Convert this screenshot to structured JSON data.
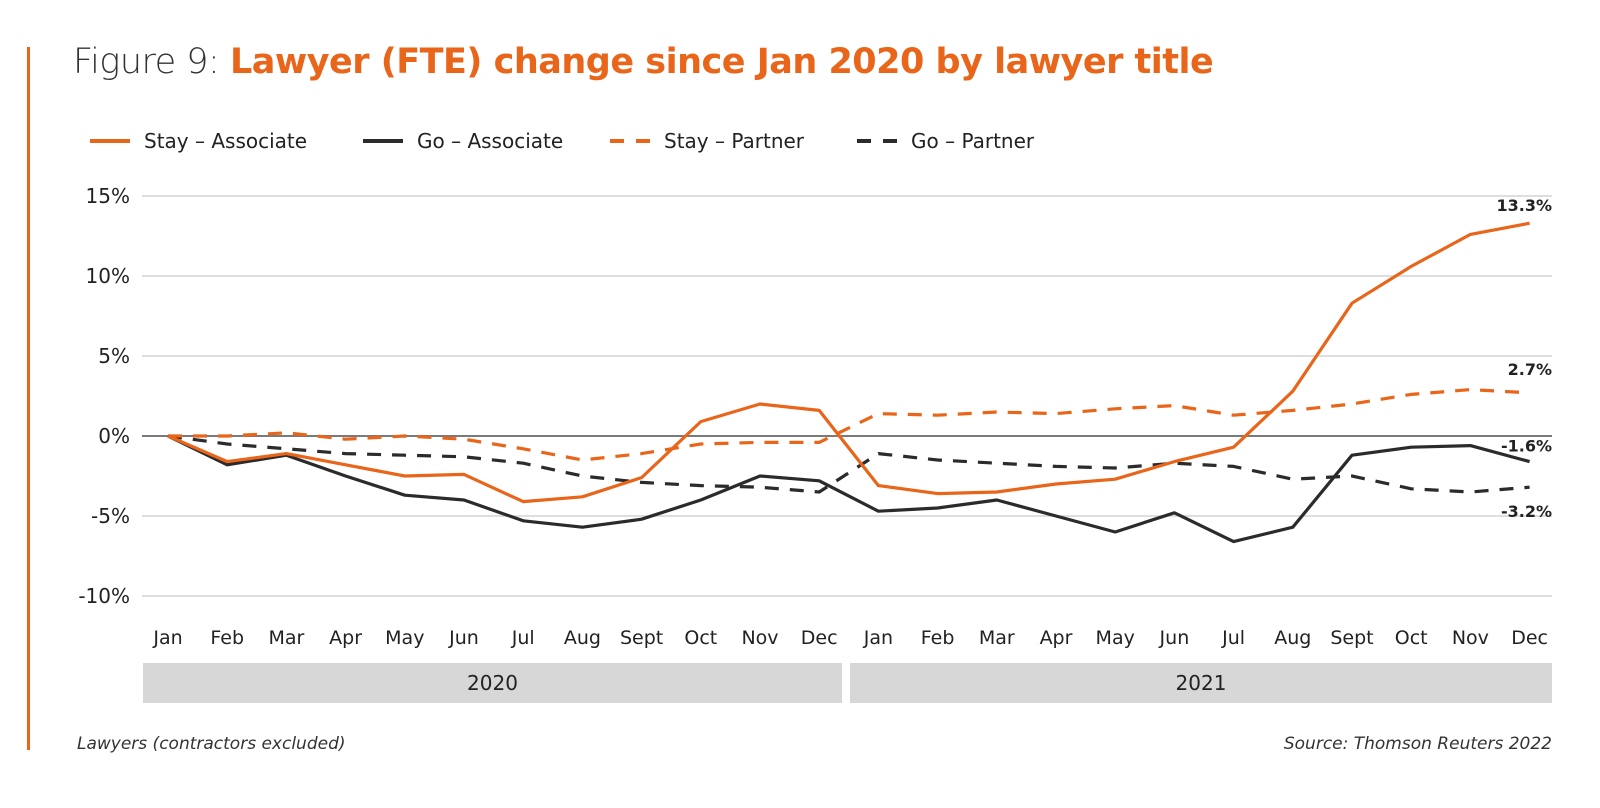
{
  "figure": {
    "prefix": "Figure 9:",
    "title": "Lawyer (FTE) change since Jan 2020 by lawyer title",
    "accent_color": "#e8651a",
    "dark_color": "#2b2b2b"
  },
  "footnote_left": "Lawyers (contractors excluded)",
  "footnote_right": "Source: Thomson Reuters 2022",
  "chart_data": {
    "type": "line",
    "title": "Lawyer (FTE) change since Jan 2020 by lawyer title",
    "xlabel": "",
    "ylabel": "",
    "ylim": [
      -10,
      15
    ],
    "yticks": [
      15,
      10,
      5,
      0,
      -5,
      -10
    ],
    "ytick_labels": [
      "15%",
      "10%",
      "5%",
      "0%",
      "-5%",
      "-10%"
    ],
    "grid": true,
    "legend_position": "top-left",
    "x": [
      "Jan",
      "Feb",
      "Mar",
      "Apr",
      "May",
      "Jun",
      "Jul",
      "Aug",
      "Sept",
      "Oct",
      "Nov",
      "Dec",
      "Jan",
      "Feb",
      "Mar",
      "Apr",
      "May",
      "Jun",
      "Jul",
      "Aug",
      "Sept",
      "Oct",
      "Nov",
      "Dec"
    ],
    "year_groups": [
      {
        "label": "2020",
        "start": 0,
        "end": 11
      },
      {
        "label": "2021",
        "start": 12,
        "end": 23
      }
    ],
    "series": [
      {
        "name": "Stay – Associate",
        "color": "#e8651a",
        "dashed": false,
        "end_label": "13.3%",
        "values": [
          0,
          -1.6,
          -1.1,
          -1.8,
          -2.5,
          -2.4,
          -4.1,
          -3.8,
          -2.6,
          0.9,
          2.0,
          1.6,
          -3.1,
          -3.6,
          -3.5,
          -3.0,
          -2.7,
          -1.6,
          -0.7,
          2.8,
          8.3,
          10.6,
          12.6,
          13.3
        ]
      },
      {
        "name": "Go – Associate",
        "color": "#2b2b2b",
        "dashed": false,
        "end_label": "-1.6%",
        "values": [
          0,
          -1.8,
          -1.2,
          -2.5,
          -3.7,
          -4.0,
          -5.3,
          -5.7,
          -5.2,
          -4.0,
          -2.5,
          -2.8,
          -4.7,
          -4.5,
          -4.0,
          -5.0,
          -6.0,
          -4.8,
          -6.6,
          -5.7,
          -1.2,
          -0.7,
          -0.6,
          -1.6
        ]
      },
      {
        "name": "Stay – Partner",
        "color": "#e8651a",
        "dashed": true,
        "end_label": "2.7%",
        "values": [
          0,
          0.0,
          0.2,
          -0.2,
          0.0,
          -0.2,
          -0.8,
          -1.5,
          -1.1,
          -0.5,
          -0.4,
          -0.4,
          1.4,
          1.3,
          1.5,
          1.4,
          1.7,
          1.9,
          1.3,
          1.6,
          2.0,
          2.6,
          2.9,
          2.7
        ]
      },
      {
        "name": "Go – Partner",
        "color": "#2b2b2b",
        "dashed": true,
        "end_label": "-3.2%",
        "values": [
          0,
          -0.5,
          -0.8,
          -1.1,
          -1.2,
          -1.3,
          -1.7,
          -2.5,
          -2.9,
          -3.1,
          -3.2,
          -3.5,
          -1.1,
          -1.5,
          -1.7,
          -1.9,
          -2.0,
          -1.7,
          -1.9,
          -2.7,
          -2.5,
          -3.3,
          -3.5,
          -3.2
        ]
      }
    ]
  }
}
